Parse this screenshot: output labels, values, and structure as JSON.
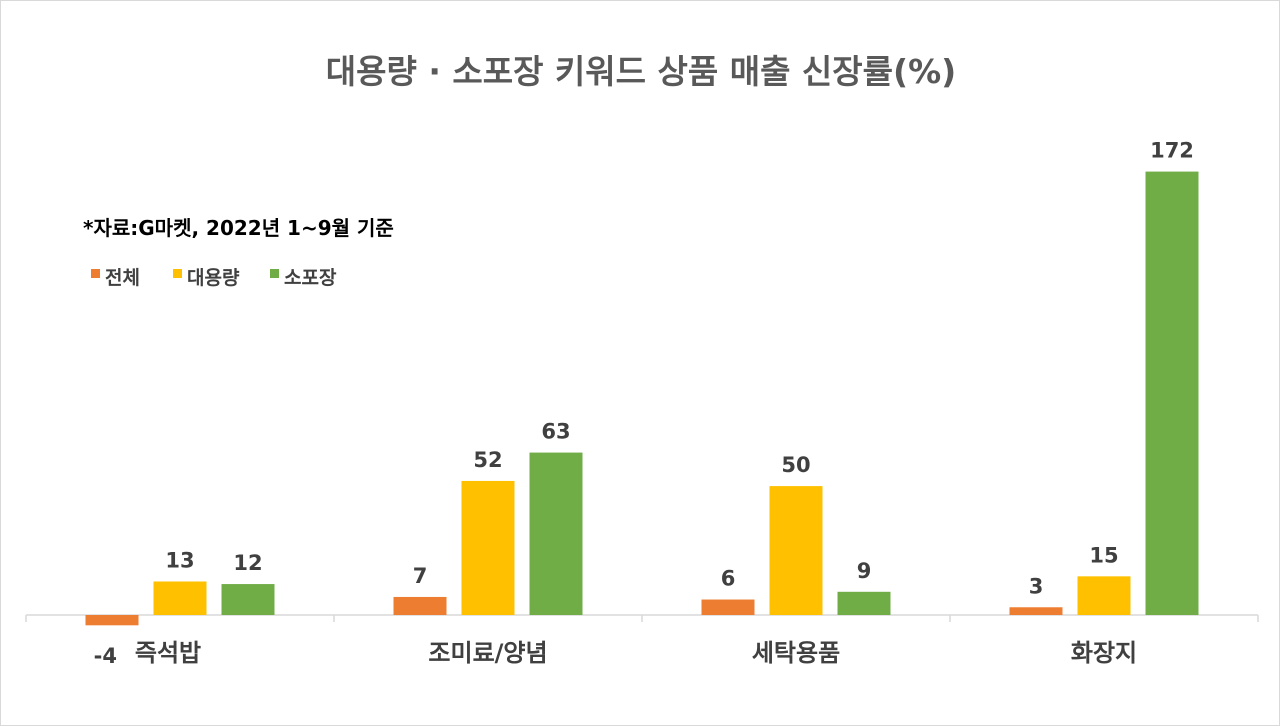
{
  "chart_data": {
    "type": "bar",
    "title": "대용량 · 소포장 키워드 상품 매출 신장률(%)",
    "annotation": "*자료:G마켓, 2022년 1~9월 기준",
    "categories": [
      "즉석밥",
      "조미료/양념",
      "세탁용품",
      "화장지"
    ],
    "series": [
      {
        "name": "전체",
        "color": "#ed7d31",
        "values": [
          -4,
          7,
          6,
          3
        ]
      },
      {
        "name": "대용량",
        "color": "#ffc000",
        "values": [
          13,
          52,
          50,
          15
        ]
      },
      {
        "name": "소포장",
        "color": "#70ad47",
        "values": [
          12,
          63,
          9,
          172
        ]
      }
    ],
    "ylim": [
      -4,
      172
    ],
    "grid": false,
    "legend_position": "top-left",
    "data_labels": true
  }
}
